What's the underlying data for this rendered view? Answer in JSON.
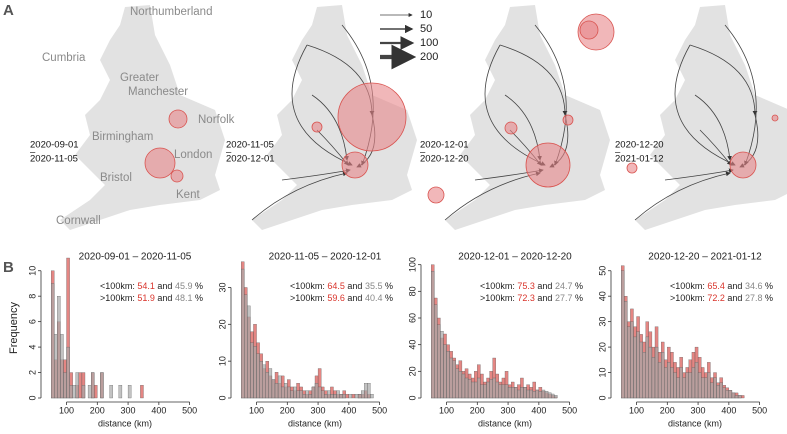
{
  "panel_labels": [
    "A",
    "B"
  ],
  "map_places": [
    "Northumberland",
    "Cumbria",
    "Greater",
    "Manchester",
    "Norfolk",
    "Birmingham",
    "London",
    "Bristol",
    "Kent",
    "Cornwall"
  ],
  "maps": [
    {
      "start": "2020-09-01",
      "sep": "–",
      "end": "2020-11-05"
    },
    {
      "start": "2020-11-05",
      "sep": "–",
      "end": "2020-12-01"
    },
    {
      "start": "2020-12-01",
      "sep": "–",
      "end": "2020-12-20"
    },
    {
      "start": "2020-12-20",
      "sep": "–",
      "end": "2021-01-12"
    }
  ],
  "flow_legend": {
    "values": [
      10,
      50,
      100,
      200
    ]
  },
  "chart_data": [
    {
      "type": "histogram",
      "title": "2020-09-01 – 2020-11-05",
      "xlabel": "distance (km)",
      "ylabel": "Frequency",
      "xlim": [
        30,
        550
      ],
      "xticks": [
        100,
        200,
        300,
        400,
        500
      ],
      "ylim": [
        0,
        11
      ],
      "yticks": [
        0,
        2,
        4,
        6,
        8,
        10
      ],
      "bins": [
        50,
        60,
        70,
        80,
        90,
        100,
        110,
        120,
        130,
        140,
        150,
        160,
        170,
        180,
        190,
        200,
        210,
        220,
        230,
        240,
        250,
        260,
        270,
        280,
        290,
        300,
        310,
        320,
        330,
        340,
        350,
        360
      ],
      "series": [
        {
          "color": "#d9534f",
          "values": [
            10,
            3,
            6,
            3,
            3,
            11,
            2,
            0,
            1,
            2,
            2,
            0,
            0,
            2,
            1,
            0,
            2,
            0,
            0,
            0,
            0,
            0,
            0,
            0,
            0,
            0,
            0,
            0,
            0,
            1,
            0
          ]
        },
        {
          "color": "#a8a8a8",
          "values": [
            9,
            5,
            8,
            5,
            2,
            4,
            1,
            1,
            2,
            0,
            1,
            0,
            1,
            2,
            0,
            0,
            2,
            0,
            0,
            1,
            0,
            0,
            1,
            0,
            0,
            1,
            0,
            0,
            0,
            0,
            0
          ]
        }
      ],
      "stats": [
        {
          "label": "<100km:",
          "values": [
            54.1,
            45.9
          ]
        },
        {
          "label": ">100km:",
          "values": [
            51.9,
            48.1
          ]
        }
      ],
      "connector": "and",
      "unit": "%"
    },
    {
      "type": "histogram",
      "title": "2020-11-05 – 2020-12-01",
      "xlabel": "distance (km)",
      "xlim": [
        30,
        550
      ],
      "xticks": [
        100,
        200,
        300,
        400,
        500
      ],
      "ylim": [
        0,
        38
      ],
      "yticks": [
        0,
        10,
        20,
        30
      ],
      "bins": [
        50,
        60,
        70,
        80,
        90,
        100,
        110,
        120,
        130,
        140,
        150,
        160,
        170,
        180,
        190,
        200,
        210,
        220,
        230,
        240,
        250,
        260,
        270,
        280,
        290,
        300,
        310,
        320,
        330,
        340,
        350,
        360,
        370,
        380,
        390,
        400,
        410,
        420,
        430,
        440,
        450,
        460,
        470,
        480
      ],
      "series": [
        {
          "color": "#d9534f",
          "values": [
            37,
            30,
            22,
            18,
            20,
            15,
            12,
            8,
            10,
            6,
            5,
            7,
            4,
            6,
            3,
            5,
            3,
            2,
            4,
            3,
            2,
            1,
            2,
            3,
            6,
            8,
            3,
            2,
            1,
            3,
            2,
            1,
            1,
            2,
            1,
            0,
            1,
            0,
            1,
            1,
            2,
            1,
            0
          ]
        },
        {
          "color": "#a8a8a8",
          "values": [
            35,
            28,
            25,
            15,
            14,
            12,
            10,
            9,
            7,
            8,
            5,
            4,
            6,
            3,
            4,
            3,
            2,
            3,
            2,
            2,
            1,
            2,
            1,
            3,
            4,
            3,
            2,
            1,
            2,
            1,
            1,
            2,
            1,
            1,
            0,
            1,
            0,
            1,
            1,
            2,
            4,
            4,
            1
          ]
        }
      ],
      "stats": [
        {
          "label": "<100km:",
          "values": [
            64.5,
            35.5
          ]
        },
        {
          "label": ">100km:",
          "values": [
            59.6,
            40.4
          ]
        }
      ],
      "connector": "and",
      "unit": "%"
    },
    {
      "type": "histogram",
      "title": "2020-12-01 – 2020-12-20",
      "xlabel": "distance (km)",
      "xlim": [
        30,
        550
      ],
      "xticks": [
        100,
        200,
        300,
        400,
        500
      ],
      "ylim": [
        0,
        105
      ],
      "yticks": [
        0,
        20,
        40,
        60,
        80,
        100
      ],
      "bins": [
        50,
        60,
        70,
        80,
        90,
        100,
        110,
        120,
        130,
        140,
        150,
        160,
        170,
        180,
        190,
        200,
        210,
        220,
        230,
        240,
        250,
        260,
        270,
        280,
        290,
        300,
        310,
        320,
        330,
        340,
        350,
        360,
        370,
        380,
        390,
        400,
        410,
        420,
        430,
        440,
        450,
        460
      ],
      "series": [
        {
          "color": "#d9534f",
          "values": [
            100,
            75,
            60,
            45,
            48,
            40,
            35,
            30,
            25,
            28,
            20,
            22,
            18,
            15,
            20,
            25,
            18,
            12,
            15,
            20,
            30,
            18,
            12,
            15,
            20,
            10,
            12,
            8,
            10,
            15,
            8,
            10,
            8,
            12,
            6,
            8,
            5,
            4,
            3,
            2,
            1
          ]
        },
        {
          "color": "#a8a8a8",
          "values": [
            95,
            70,
            55,
            50,
            40,
            35,
            30,
            28,
            22,
            20,
            18,
            15,
            14,
            12,
            12,
            15,
            10,
            10,
            12,
            14,
            15,
            12,
            10,
            10,
            10,
            8,
            8,
            8,
            6,
            8,
            8,
            6,
            6,
            5,
            6,
            5,
            6,
            5,
            4,
            3,
            2
          ]
        }
      ],
      "stats": [
        {
          "label": "<100km:",
          "values": [
            75.3,
            24.7
          ]
        },
        {
          "label": ">100km:",
          "values": [
            72.3,
            27.7
          ]
        }
      ],
      "connector": "and",
      "unit": "%"
    },
    {
      "type": "histogram",
      "title": "2020-12-20 – 2021-01-12",
      "xlabel": "distance (km)",
      "xlim": [
        30,
        550
      ],
      "xticks": [
        100,
        200,
        300,
        400,
        500
      ],
      "ylim": [
        0,
        55
      ],
      "yticks": [
        0,
        10,
        20,
        30,
        40,
        50
      ],
      "bins": [
        50,
        60,
        70,
        80,
        90,
        100,
        110,
        120,
        130,
        140,
        150,
        160,
        170,
        180,
        190,
        200,
        210,
        220,
        230,
        240,
        250,
        260,
        270,
        280,
        290,
        300,
        310,
        320,
        330,
        340,
        350,
        360,
        370,
        380,
        390,
        400,
        410,
        420,
        430,
        440,
        450
      ],
      "series": [
        {
          "color": "#d9534f",
          "values": [
            52,
            40,
            30,
            35,
            28,
            32,
            25,
            22,
            30,
            26,
            20,
            28,
            18,
            22,
            15,
            20,
            18,
            14,
            12,
            16,
            10,
            12,
            15,
            18,
            20,
            16,
            12,
            10,
            14,
            8,
            10,
            6,
            8,
            5,
            4,
            3,
            2,
            2,
            1,
            1
          ]
        },
        {
          "color": "#a8a8a8",
          "values": [
            50,
            38,
            28,
            30,
            24,
            26,
            22,
            18,
            24,
            20,
            16,
            20,
            14,
            18,
            12,
            14,
            12,
            10,
            8,
            12,
            8,
            10,
            10,
            12,
            14,
            10,
            8,
            8,
            10,
            6,
            8,
            5,
            6,
            4,
            3,
            3,
            2,
            1,
            1,
            0
          ]
        }
      ],
      "stats": [
        {
          "label": "<100km:",
          "values": [
            65.4,
            34.6
          ]
        },
        {
          "label": ">100km:",
          "values": [
            72.2,
            27.8
          ]
        }
      ],
      "connector": "and",
      "unit": "%"
    }
  ]
}
